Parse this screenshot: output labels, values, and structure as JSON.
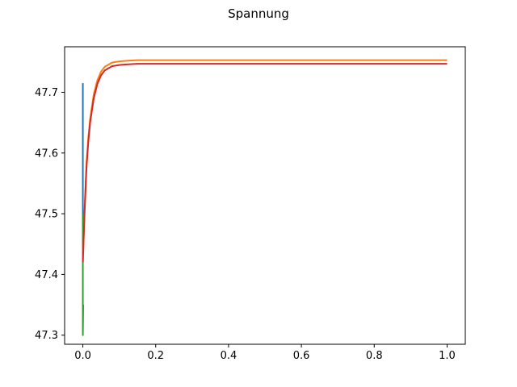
{
  "chart_data": {
    "type": "line",
    "title": "Spannung",
    "xlabel": "",
    "ylabel": "",
    "xlim": [
      -0.05,
      1.05
    ],
    "ylim": [
      47.285,
      47.775
    ],
    "grid": false,
    "xticks": [
      0.0,
      0.2,
      0.4,
      0.6,
      0.8,
      1.0
    ],
    "xtick_labels": [
      "0.0",
      "0.2",
      "0.4",
      "0.6",
      "0.8",
      "1.0"
    ],
    "yticks": [
      47.3,
      47.4,
      47.5,
      47.6,
      47.7
    ],
    "ytick_labels": [
      "47.3",
      "47.4",
      "47.5",
      "47.6",
      "47.7"
    ],
    "series": [
      {
        "color": "#1f77b4",
        "x": [
          0,
          0,
          0.001
        ],
        "y": [
          47.715,
          47.45,
          47.44
        ]
      },
      {
        "color": "#2ca02c",
        "x": [
          0,
          0,
          0.001
        ],
        "y": [
          47.5,
          47.3,
          47.35
        ]
      },
      {
        "color": "#ff7f0e",
        "x": [
          0.0,
          0.005,
          0.01,
          0.015,
          0.02,
          0.03,
          0.04,
          0.05,
          0.06,
          0.08,
          0.1,
          0.12,
          0.15,
          0.2,
          0.3,
          0.5,
          0.75,
          1.0
        ],
        "y": [
          47.42,
          47.512,
          47.583,
          47.625,
          47.656,
          47.697,
          47.72,
          47.734,
          47.742,
          47.749,
          47.751,
          47.752,
          47.753,
          47.753,
          47.753,
          47.753,
          47.753,
          47.753
        ]
      },
      {
        "color": "#d62728",
        "x": [
          0.0,
          0.005,
          0.01,
          0.015,
          0.02,
          0.03,
          0.04,
          0.05,
          0.06,
          0.08,
          0.1,
          0.12,
          0.15,
          0.2,
          0.3,
          0.5,
          0.75,
          1.0
        ],
        "y": [
          47.42,
          47.505,
          47.575,
          47.618,
          47.65,
          47.69,
          47.714,
          47.728,
          47.736,
          47.743,
          47.745,
          47.746,
          47.747,
          47.747,
          47.747,
          47.747,
          47.747,
          47.747
        ]
      }
    ]
  }
}
